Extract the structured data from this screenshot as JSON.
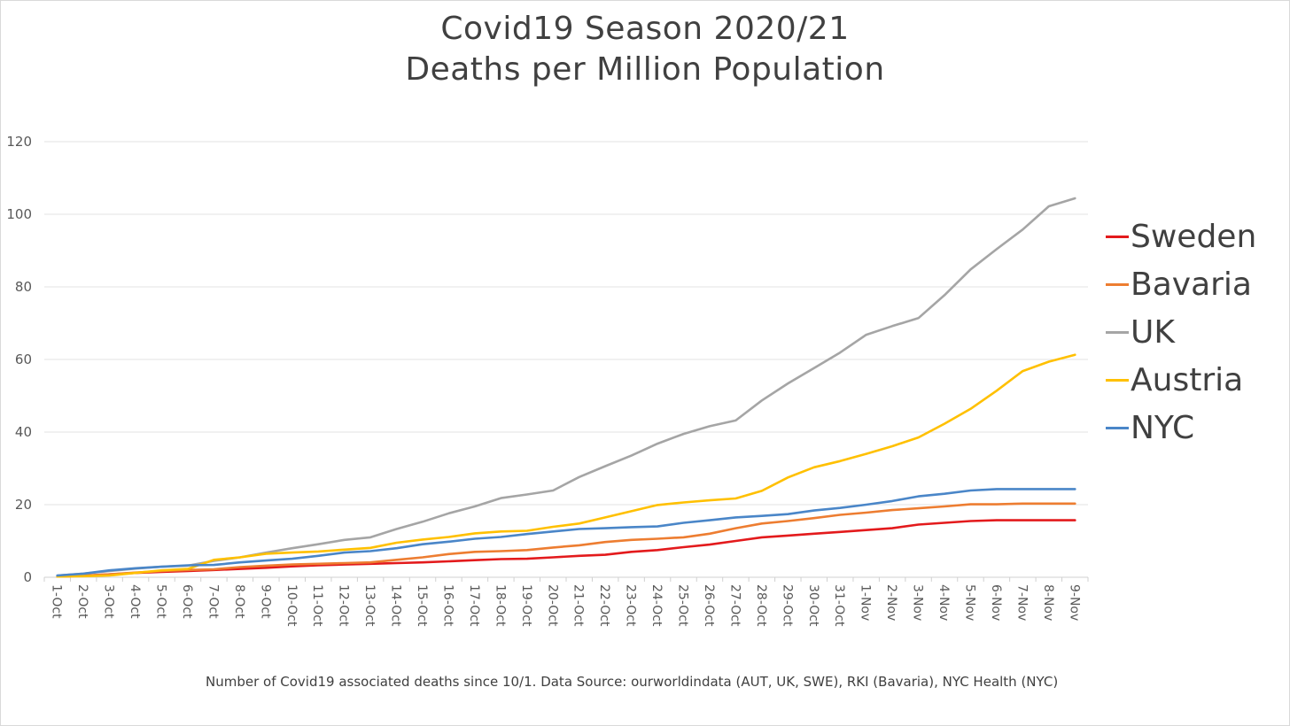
{
  "chart_data": {
    "type": "line",
    "title": "Covid19 Season 2020/21",
    "subtitle": "Deaths per Million Population",
    "caption": "Number of Covid19 associated deaths since 10/1. Data Source: ourworldindata  (AUT, UK, SWE), RKI (Bavaria), NYC Health (NYC)",
    "xlabel": "",
    "ylabel": "",
    "ylim": [
      0,
      120
    ],
    "yticks": [
      "0",
      "20",
      "40",
      "60",
      "80",
      "100",
      "120"
    ],
    "grid": true,
    "legend_position": "right",
    "categories": [
      "1-Oct",
      "2-Oct",
      "3-Oct",
      "4-Oct",
      "5-Oct",
      "6-Oct",
      "7-Oct",
      "8-Oct",
      "9-Oct",
      "10-Oct",
      "11-Oct",
      "12-Oct",
      "13-Oct",
      "14-Oct",
      "15-Oct",
      "16-Oct",
      "17-Oct",
      "18-Oct",
      "19-Oct",
      "20-Oct",
      "21-Oct",
      "22-Oct",
      "23-Oct",
      "24-Oct",
      "25-Oct",
      "26-Oct",
      "27-Oct",
      "28-Oct",
      "29-Oct",
      "30-Oct",
      "31-Oct",
      "1-Nov",
      "2-Nov",
      "3-Nov",
      "4-Nov",
      "5-Nov",
      "6-Nov",
      "7-Nov",
      "8-Nov",
      "9-Nov"
    ],
    "series": [
      {
        "name": "Sweden",
        "color": "#e31a1c",
        "values": [
          0.2,
          0.4,
          0.8,
          1.2,
          1.5,
          1.7,
          2.0,
          2.3,
          2.6,
          3.0,
          3.3,
          3.5,
          3.7,
          3.9,
          4.1,
          4.4,
          4.7,
          5.0,
          5.1,
          5.5,
          5.9,
          6.2,
          7.0,
          7.5,
          8.3,
          9.0,
          10.0,
          11.0,
          11.5,
          12.0,
          12.5,
          13.0,
          13.5,
          14.5,
          15.0,
          15.5,
          15.7,
          15.7,
          15.7,
          15.7
        ]
      },
      {
        "name": "Bavaria",
        "color": "#ed7d31",
        "values": [
          0.3,
          0.5,
          0.8,
          1.3,
          1.7,
          2.0,
          2.2,
          2.8,
          3.2,
          3.5,
          3.7,
          3.9,
          4.1,
          4.8,
          5.5,
          6.4,
          7.0,
          7.2,
          7.5,
          8.2,
          8.8,
          9.7,
          10.3,
          10.6,
          11.0,
          12.0,
          13.5,
          14.8,
          15.5,
          16.3,
          17.2,
          17.8,
          18.5,
          19.0,
          19.5,
          20.1,
          20.1,
          20.3,
          20.3,
          20.3
        ]
      },
      {
        "name": "UK",
        "color": "#a5a5a5",
        "values": [
          0.5,
          1.0,
          1.7,
          2.4,
          2.9,
          3.2,
          4.5,
          5.5,
          6.8,
          8.0,
          9.1,
          10.3,
          11.0,
          13.3,
          15.3,
          17.6,
          19.5,
          21.8,
          22.8,
          23.9,
          27.6,
          30.6,
          33.5,
          36.8,
          39.5,
          41.6,
          43.2,
          48.7,
          53.4,
          57.6,
          61.9,
          66.8,
          69.2,
          71.4,
          77.7,
          84.8,
          90.4,
          95.8,
          102.2,
          104.4
        ]
      },
      {
        "name": "Austria",
        "color": "#ffc000",
        "values": [
          0.2,
          0.3,
          0.5,
          1.2,
          1.9,
          2.3,
          4.8,
          5.5,
          6.5,
          6.8,
          7.1,
          7.6,
          8.1,
          9.5,
          10.4,
          11.1,
          12.1,
          12.6,
          12.8,
          13.9,
          14.8,
          16.5,
          18.2,
          19.9,
          20.6,
          21.2,
          21.7,
          23.8,
          27.5,
          30.3,
          32.0,
          34.0,
          36.1,
          38.5,
          42.3,
          46.4,
          51.4,
          56.8,
          59.4,
          61.3
        ]
      },
      {
        "name": "NYC",
        "color": "#4a86c8",
        "values": [
          0.5,
          1.0,
          1.9,
          2.5,
          2.9,
          3.3,
          3.4,
          4.1,
          4.6,
          5.1,
          5.9,
          6.8,
          7.2,
          8.0,
          9.1,
          9.8,
          10.6,
          11.1,
          11.9,
          12.6,
          13.3,
          13.5,
          13.8,
          14.0,
          15.0,
          15.7,
          16.5,
          16.9,
          17.4,
          18.4,
          19.1,
          20.0,
          21.0,
          22.3,
          23.0,
          23.9,
          24.3,
          24.3,
          24.3,
          24.3
        ]
      }
    ]
  }
}
